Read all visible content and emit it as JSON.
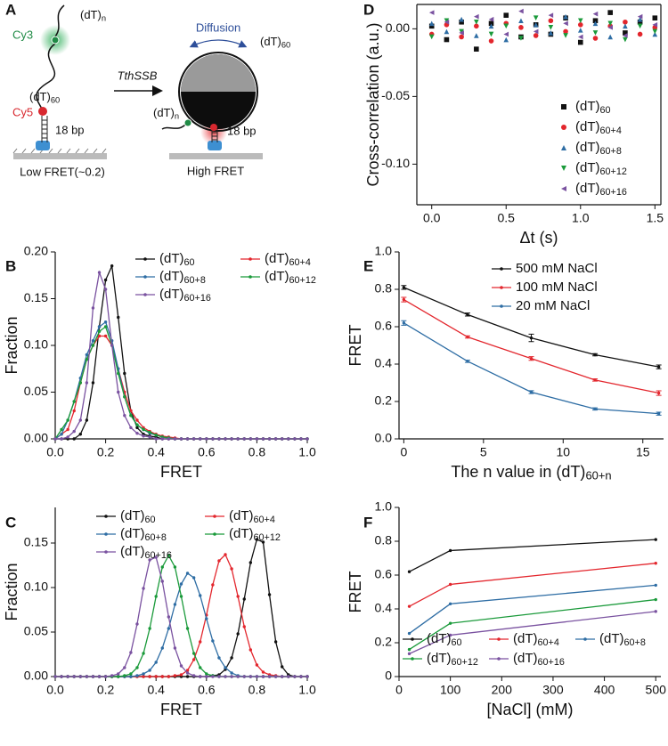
{
  "diagram": {
    "panel": "A",
    "left": {
      "tail": "(dT)n",
      "cy3": "Cy3",
      "linker": "(dT)60",
      "cy5": "Cy5",
      "duplex": "18 bp",
      "state": "Low FRET(~0.2)"
    },
    "arrow": "TthSSB",
    "right": {
      "motion": "Diffusion",
      "wrap": "(dT)60",
      "tail": "(dT)n",
      "duplex": "18 bp",
      "state": "High FRET"
    }
  },
  "chart_data": [
    {
      "type": "line",
      "panel": "B",
      "xlabel": "FRET",
      "ylabel": "Fraction",
      "xlim": [
        0,
        1
      ],
      "xticks": [
        {
          "value": 0,
          "label": "0.0"
        },
        0.2,
        0.4,
        0.6,
        0.8,
        {
          "value": 1,
          "label": "1.0"
        }
      ],
      "ylim": [
        0,
        0.2
      ],
      "yticks": [
        {
          "value": 0,
          "label": "0.00"
        },
        0.05,
        {
          "value": 0.1,
          "label": "0.10"
        },
        0.15,
        {
          "value": 0.2,
          "label": "0.20"
        }
      ],
      "x": [
        0,
        0.025,
        0.05,
        0.075,
        0.1,
        0.125,
        0.15,
        0.175,
        0.2,
        0.225,
        0.25,
        0.275,
        0.3,
        0.325,
        0.35,
        0.375,
        0.4,
        0.425,
        0.45,
        0.475,
        0.5,
        0.525,
        0.55,
        0.575,
        0.6,
        0.625,
        0.65,
        0.675,
        0.7,
        0.725,
        0.75,
        0.775,
        0.8,
        0.825,
        0.85,
        0.875,
        0.9,
        0.925,
        0.95,
        0.975,
        1
      ],
      "series": [
        {
          "name": "(dT)60",
          "color": "#111111",
          "values": [
            0,
            0,
            0,
            0,
            0.005,
            0.02,
            0.06,
            0.12,
            0.17,
            0.185,
            0.13,
            0.07,
            0.03,
            0.012,
            0.005,
            0.003,
            0.002,
            0,
            0,
            0,
            0,
            0,
            0,
            0,
            0,
            0,
            0,
            0,
            0,
            0,
            0,
            0,
            0,
            0,
            0,
            0,
            0,
            0,
            0,
            0,
            0
          ]
        },
        {
          "name": "(dT)60+4",
          "color": "#e3262d",
          "values": [
            0,
            0.005,
            0.01,
            0.03,
            0.06,
            0.085,
            0.1,
            0.11,
            0.11,
            0.1,
            0.075,
            0.05,
            0.03,
            0.02,
            0.012,
            0.008,
            0.005,
            0.003,
            0.002,
            0.001,
            0,
            0,
            0,
            0,
            0,
            0,
            0,
            0,
            0,
            0,
            0,
            0,
            0,
            0,
            0,
            0,
            0,
            0,
            0,
            0,
            0
          ]
        },
        {
          "name": "(dT)60+8",
          "color": "#2e6da4",
          "values": [
            0,
            0.005,
            0.02,
            0.04,
            0.065,
            0.09,
            0.105,
            0.12,
            0.125,
            0.105,
            0.075,
            0.045,
            0.025,
            0.015,
            0.01,
            0.006,
            0.004,
            0.002,
            0.001,
            0,
            0,
            0,
            0,
            0,
            0,
            0,
            0,
            0,
            0,
            0,
            0,
            0,
            0,
            0,
            0,
            0,
            0,
            0,
            0,
            0,
            0
          ]
        },
        {
          "name": "(dT)60+12",
          "color": "#1a9a3a",
          "values": [
            0,
            0.01,
            0.02,
            0.04,
            0.06,
            0.085,
            0.1,
            0.115,
            0.12,
            0.1,
            0.07,
            0.045,
            0.025,
            0.015,
            0.01,
            0.007,
            0.004,
            0.002,
            0.001,
            0,
            0,
            0,
            0,
            0,
            0,
            0,
            0,
            0,
            0,
            0,
            0,
            0,
            0,
            0,
            0,
            0,
            0,
            0,
            0,
            0,
            0
          ]
        },
        {
          "name": "(dT)60+16",
          "color": "#7a52a0",
          "values": [
            0,
            0,
            0.002,
            0.008,
            0.02,
            0.06,
            0.14,
            0.178,
            0.16,
            0.1,
            0.05,
            0.025,
            0.012,
            0.006,
            0.003,
            0.002,
            0,
            0,
            0,
            0,
            0,
            0,
            0,
            0,
            0,
            0,
            0,
            0,
            0,
            0,
            0,
            0,
            0,
            0,
            0,
            0,
            0,
            0,
            0,
            0,
            0
          ]
        }
      ]
    },
    {
      "type": "line",
      "panel": "C",
      "xlabel": "FRET",
      "ylabel": "Fraction",
      "xlim": [
        0,
        1
      ],
      "xticks": [
        {
          "value": 0,
          "label": "0.0"
        },
        0.2,
        0.4,
        0.6,
        0.8,
        {
          "value": 1,
          "label": "1.0"
        }
      ],
      "ylim": [
        0,
        0.19
      ],
      "yticks": [
        {
          "value": 0,
          "label": "0.00"
        },
        0.05,
        {
          "value": 0.1,
          "label": "0.10"
        },
        0.15
      ],
      "x": [
        0,
        0.025,
        0.05,
        0.075,
        0.1,
        0.125,
        0.15,
        0.175,
        0.2,
        0.225,
        0.25,
        0.275,
        0.3,
        0.325,
        0.35,
        0.375,
        0.4,
        0.425,
        0.45,
        0.475,
        0.5,
        0.525,
        0.55,
        0.575,
        0.6,
        0.625,
        0.65,
        0.675,
        0.7,
        0.725,
        0.75,
        0.775,
        0.8,
        0.825,
        0.85,
        0.875,
        0.9,
        0.925,
        0.95,
        0.975,
        1
      ],
      "series": [
        {
          "name": "(dT)60",
          "color": "#111111",
          "values": [
            0,
            0,
            0,
            0,
            0,
            0,
            0,
            0,
            0,
            0,
            0,
            0,
            0,
            0,
            0,
            0,
            0,
            0,
            0,
            0,
            0,
            0,
            0,
            0,
            0,
            0.001,
            0.002,
            0.008,
            0.021,
            0.048,
            0.087,
            0.128,
            0.154,
            0.151,
            0.092,
            0.039,
            0.011,
            0.002,
            0,
            0,
            0
          ]
        },
        {
          "name": "(dT)60+4",
          "color": "#e3262d",
          "values": [
            0,
            0,
            0,
            0,
            0,
            0,
            0,
            0,
            0,
            0,
            0,
            0,
            0,
            0,
            0,
            0,
            0,
            0,
            0,
            0.001,
            0.002,
            0.007,
            0.019,
            0.039,
            0.069,
            0.103,
            0.13,
            0.137,
            0.121,
            0.09,
            0.056,
            0.03,
            0.013,
            0.005,
            0.002,
            0.001,
            0,
            0,
            0,
            0,
            0
          ]
        },
        {
          "name": "(dT)60+8",
          "color": "#2e6da4",
          "values": [
            0,
            0,
            0,
            0,
            0,
            0,
            0,
            0,
            0,
            0,
            0,
            0,
            0,
            0.001,
            0.003,
            0.007,
            0.016,
            0.032,
            0.054,
            0.081,
            0.104,
            0.116,
            0.111,
            0.091,
            0.065,
            0.04,
            0.021,
            0.01,
            0.004,
            0.001,
            0,
            0,
            0,
            0,
            0,
            0,
            0,
            0,
            0,
            0,
            0
          ]
        },
        {
          "name": "(dT)60+12",
          "color": "#1a9a3a",
          "values": [
            0,
            0,
            0,
            0,
            0,
            0,
            0,
            0,
            0,
            0,
            0,
            0.001,
            0.003,
            0.01,
            0.026,
            0.054,
            0.09,
            0.123,
            0.136,
            0.123,
            0.09,
            0.054,
            0.026,
            0.01,
            0.003,
            0.001,
            0,
            0,
            0,
            0,
            0,
            0,
            0,
            0,
            0,
            0,
            0,
            0,
            0,
            0,
            0
          ]
        },
        {
          "name": "(dT)60+16",
          "color": "#7a52a0",
          "values": [
            0,
            0,
            0,
            0,
            0,
            0,
            0,
            0,
            0,
            0.001,
            0.003,
            0.01,
            0.027,
            0.059,
            0.099,
            0.131,
            0.134,
            0.107,
            0.067,
            0.032,
            0.012,
            0.004,
            0.001,
            0,
            0,
            0,
            0,
            0,
            0,
            0,
            0,
            0,
            0,
            0,
            0,
            0,
            0,
            0,
            0,
            0,
            0
          ]
        }
      ]
    },
    {
      "type": "scatter",
      "panel": "D",
      "xlabel": "Δt (s)",
      "ylabel": "Cross-correlation (a.u.)",
      "xlim": [
        -0.1,
        1.54
      ],
      "xticks": [
        {
          "value": 0,
          "label": "0.0"
        },
        0.5,
        {
          "value": 1,
          "label": "1.0"
        },
        1.5
      ],
      "ylim": [
        -0.13,
        0.018
      ],
      "yticks": [
        {
          "value": 0,
          "label": "0.00"
        },
        -0.05,
        {
          "value": -0.1,
          "label": "-0.10"
        }
      ],
      "x": [
        0,
        0.1,
        0.2,
        0.3,
        0.4,
        0.5,
        0.6,
        0.7,
        0.8,
        0.9,
        1,
        1.1,
        1.2,
        1.3,
        1.4,
        1.5
      ],
      "series": [
        {
          "name": "(dT)60",
          "color": "#111111",
          "marker": "square",
          "values": [
            0.002,
            -0.008,
            0.005,
            -0.015,
            0.004,
            0.01,
            -0.006,
            0.003,
            -0.004,
            0.008,
            -0.01,
            0.006,
            0.012,
            -0.003,
            0.005,
            0.008
          ]
        },
        {
          "name": "(dT)60+4",
          "color": "#e3262d",
          "marker": "circle",
          "values": [
            -0.004,
            0.003,
            -0.006,
            0.002,
            -0.009,
            0.004,
            0.001,
            -0.005,
            0.006,
            -0.002,
            0.003,
            -0.007,
            0.002,
            0.005,
            -0.004,
            0.001
          ]
        },
        {
          "name": "(dT)60+8",
          "color": "#2e6da4",
          "marker": "triangle-up",
          "values": [
            0.004,
            -0.002,
            0.007,
            -0.005,
            0.002,
            -0.008,
            0.006,
            0.003,
            -0.003,
            0.009,
            -0.001,
            0.004,
            -0.006,
            0.002,
            0.007,
            -0.004
          ]
        },
        {
          "name": "(dT)60+12",
          "color": "#1a9a3a",
          "marker": "triangle-down",
          "values": [
            -0.006,
            0.006,
            -0.002,
            0.005,
            -0.004,
            0.002,
            -0.007,
            0.008,
            0.001,
            -0.005,
            0.006,
            -0.003,
            0.004,
            -0.008,
            0.002,
            -0.002
          ]
        },
        {
          "name": "(dT)60+16",
          "color": "#7a52a0",
          "marker": "triangle-left",
          "values": [
            0.012,
            0.005,
            -0.003,
            0.009,
            0.007,
            -0.004,
            0.013,
            -0.002,
            0.01,
            0.004,
            -0.006,
            0.011,
            0.001,
            -0.005,
            0.009,
            0.003
          ]
        }
      ]
    },
    {
      "type": "line",
      "panel": "E",
      "xlabel": "The n value in (dT)60+n",
      "ylabel": "FRET",
      "xlim": [
        -0.3,
        16.3
      ],
      "xticks": [
        0,
        5,
        10,
        15
      ],
      "ylim": [
        0,
        1
      ],
      "yticks": [
        {
          "value": 0,
          "label": "0.0"
        },
        0.2,
        0.4,
        0.6,
        0.8,
        {
          "value": 1,
          "label": "1.0"
        }
      ],
      "x": [
        0,
        4,
        8,
        12,
        16
      ],
      "series": [
        {
          "name": "500 mM NaCl",
          "color": "#111111",
          "values": [
            0.81,
            0.665,
            0.54,
            0.45,
            0.385
          ],
          "errors": [
            0.01,
            0.008,
            0.02,
            0.006,
            0.01
          ]
        },
        {
          "name": "100 mM NaCl",
          "color": "#e3262d",
          "values": [
            0.745,
            0.545,
            0.43,
            0.315,
            0.245
          ],
          "errors": [
            0.012,
            0.006,
            0.01,
            0.006,
            0.012
          ]
        },
        {
          "name": "20 mM NaCl",
          "color": "#2e6da4",
          "values": [
            0.62,
            0.415,
            0.25,
            0.16,
            0.135
          ],
          "errors": [
            0.012,
            0.006,
            0.008,
            0.006,
            0.008
          ]
        }
      ]
    },
    {
      "type": "line",
      "panel": "F",
      "xlabel": "[NaCl] (mM)",
      "ylabel": "FRET",
      "xlim": [
        0,
        510
      ],
      "xticks": [
        0,
        100,
        200,
        300,
        400,
        500
      ],
      "ylim": [
        0,
        1
      ],
      "yticks": [
        0,
        0.2,
        0.4,
        0.6,
        0.8,
        {
          "value": 1,
          "label": "1.0"
        }
      ],
      "x": [
        20,
        100,
        500
      ],
      "series": [
        {
          "name": "(dT)60",
          "color": "#111111",
          "values": [
            0.62,
            0.745,
            0.81
          ]
        },
        {
          "name": "(dT)60+4",
          "color": "#e3262d",
          "values": [
            0.415,
            0.545,
            0.67
          ]
        },
        {
          "name": "(dT)60+8",
          "color": "#2e6da4",
          "values": [
            0.255,
            0.43,
            0.54
          ]
        },
        {
          "name": "(dT)60+12",
          "color": "#1a9a3a",
          "values": [
            0.16,
            0.315,
            0.455
          ]
        },
        {
          "name": "(dT)60+16",
          "color": "#7a52a0",
          "values": [
            0.135,
            0.245,
            0.385
          ]
        }
      ]
    }
  ]
}
